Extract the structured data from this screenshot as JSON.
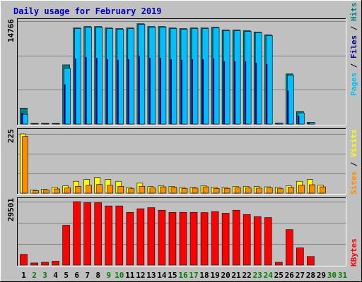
{
  "chart_data": {
    "type": "bar",
    "title": "Daily usage for February 2019",
    "categories": [
      "1",
      "2",
      "3",
      "4",
      "5",
      "6",
      "7",
      "8",
      "9",
      "10",
      "11",
      "12",
      "13",
      "14",
      "15",
      "16",
      "17",
      "18",
      "19",
      "20",
      "21",
      "22",
      "23",
      "24",
      "25",
      "26",
      "27",
      "28",
      "29",
      "30",
      "31"
    ],
    "weekend_days": [
      "2",
      "3",
      "9",
      "10",
      "16",
      "17",
      "23",
      "24",
      "30",
      "31"
    ],
    "panels": [
      {
        "id": "hits",
        "ymax_label": "14766",
        "ymax": 14766,
        "ylabel": {
          "a": "Pages",
          "s1": " / ",
          "b": "Files",
          "s2": " / ",
          "c": "Hits"
        },
        "series": [
          {
            "name": "Hits",
            "color": "#008080",
            "values": [
              2300,
              100,
              100,
              100,
              8500,
              13800,
              14000,
              14000,
              13800,
              13700,
              13800,
              14400,
              14000,
              14000,
              13800,
              13700,
              13800,
              13800,
              13900,
              13500,
              13500,
              13400,
              13200,
              12800,
              150,
              7200,
              1800,
              250,
              0,
              0,
              0
            ]
          },
          {
            "name": "Files",
            "color": "#00008b",
            "values": [
              1600,
              50,
              50,
              50,
              5700,
              9400,
              9600,
              9500,
              9300,
              9200,
              9300,
              9800,
              9500,
              9500,
              9300,
              9200,
              9300,
              9300,
              9400,
              9000,
              9000,
              9000,
              8800,
              8600,
              80,
              4800,
              1200,
              150,
              0,
              0,
              0
            ]
          },
          {
            "name": "Pages",
            "color": "#00bfff",
            "values": [
              1400,
              40,
              40,
              40,
              8000,
              13700,
              13900,
              13900,
              13700,
              13600,
              13700,
              14300,
              13900,
              13900,
              13700,
              13600,
              13700,
              13700,
              13800,
              13400,
              13400,
              13300,
              13100,
              12700,
              120,
              7000,
              1600,
              230,
              0,
              0,
              0
            ]
          }
        ]
      },
      {
        "id": "visits",
        "ymax_label": "225",
        "ymax": 225,
        "ylabel": {
          "a": "Sites",
          "s1": " / ",
          "b": "Visits"
        },
        "series": [
          {
            "name": "Visits",
            "color": "#ffff00",
            "values": [
              225,
              12,
              15,
              22,
              28,
              45,
              52,
              60,
              52,
              45,
              22,
              38,
              25,
              28,
              26,
              22,
              22,
              28,
              23,
              22,
              26,
              26,
              25,
              24,
              22,
              28,
              45,
              52,
              30,
              0,
              0
            ]
          },
          {
            "name": "Sites",
            "color": "#ff8c00",
            "values": [
              215,
              10,
              12,
              16,
              20,
              26,
              30,
              33,
              30,
              26,
              17,
              26,
              20,
              24,
              22,
              18,
              19,
              24,
              18,
              18,
              21,
              20,
              19,
              20,
              17,
              22,
              30,
              32,
              24,
              0,
              0
            ]
          }
        ]
      },
      {
        "id": "kbytes",
        "ymax_label": "29501",
        "ymax": 29501,
        "ylabel": {
          "a": "KBytes"
        },
        "series": [
          {
            "name": "KBytes",
            "color": "#ff0000",
            "values": [
              5000,
              1000,
              1300,
              1800,
              18500,
              29500,
              29000,
              29000,
              27500,
              27500,
              24500,
              26200,
              26700,
              25500,
              24500,
              24500,
              24500,
              24400,
              24900,
              24100,
              25500,
              23500,
              22500,
              22100,
              1300,
              16500,
              8000,
              4000,
              0,
              0,
              0
            ]
          }
        ]
      }
    ]
  }
}
